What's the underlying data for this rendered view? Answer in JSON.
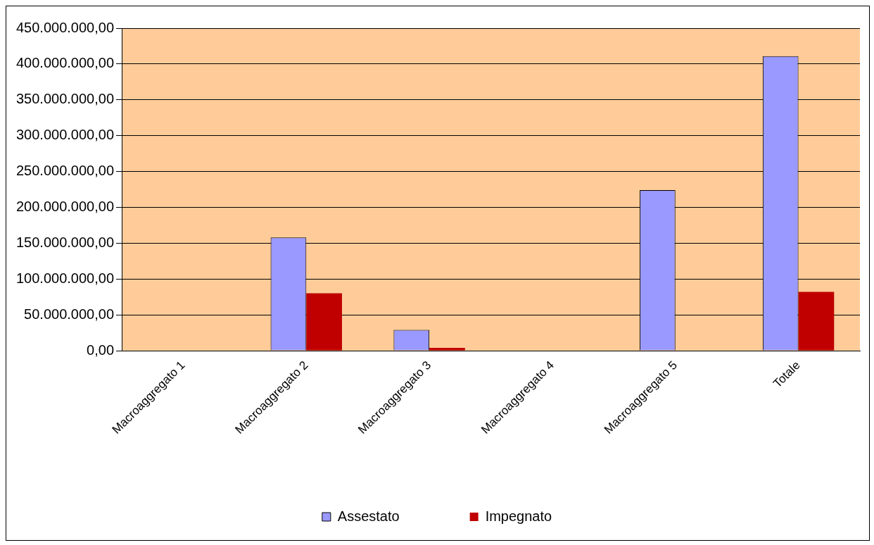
{
  "chart_data": {
    "type": "bar",
    "categories": [
      "Macroaggregato 1",
      "Macroaggregato 2",
      "Macroaggregato 3",
      "Macroaggregato 4",
      "Macroaggregato 5",
      "Totale"
    ],
    "series": [
      {
        "name": "Assestato",
        "color": "#9999ff",
        "values": [
          0,
          158000000,
          29000000,
          0,
          224000000,
          411000000
        ]
      },
      {
        "name": "Impegnato",
        "color": "#c00000",
        "values": [
          0,
          80000000,
          4000000,
          0,
          0,
          82000000
        ]
      }
    ],
    "ylim": [
      0,
      450000000
    ],
    "yticks": [
      {
        "value": 0,
        "label": "0,00"
      },
      {
        "value": 50000000,
        "label": "50.000.000,00"
      },
      {
        "value": 100000000,
        "label": "100.000.000,00"
      },
      {
        "value": 150000000,
        "label": "150.000.000,00"
      },
      {
        "value": 200000000,
        "label": "200.000.000,00"
      },
      {
        "value": 250000000,
        "label": "250.000.000,00"
      },
      {
        "value": 300000000,
        "label": "300.000.000,00"
      },
      {
        "value": 350000000,
        "label": "350.000.000,00"
      },
      {
        "value": 400000000,
        "label": "400.000.000,00"
      },
      {
        "value": 450000000,
        "label": "450.000.000,00"
      }
    ],
    "grid": "y",
    "legend": "bottom"
  }
}
